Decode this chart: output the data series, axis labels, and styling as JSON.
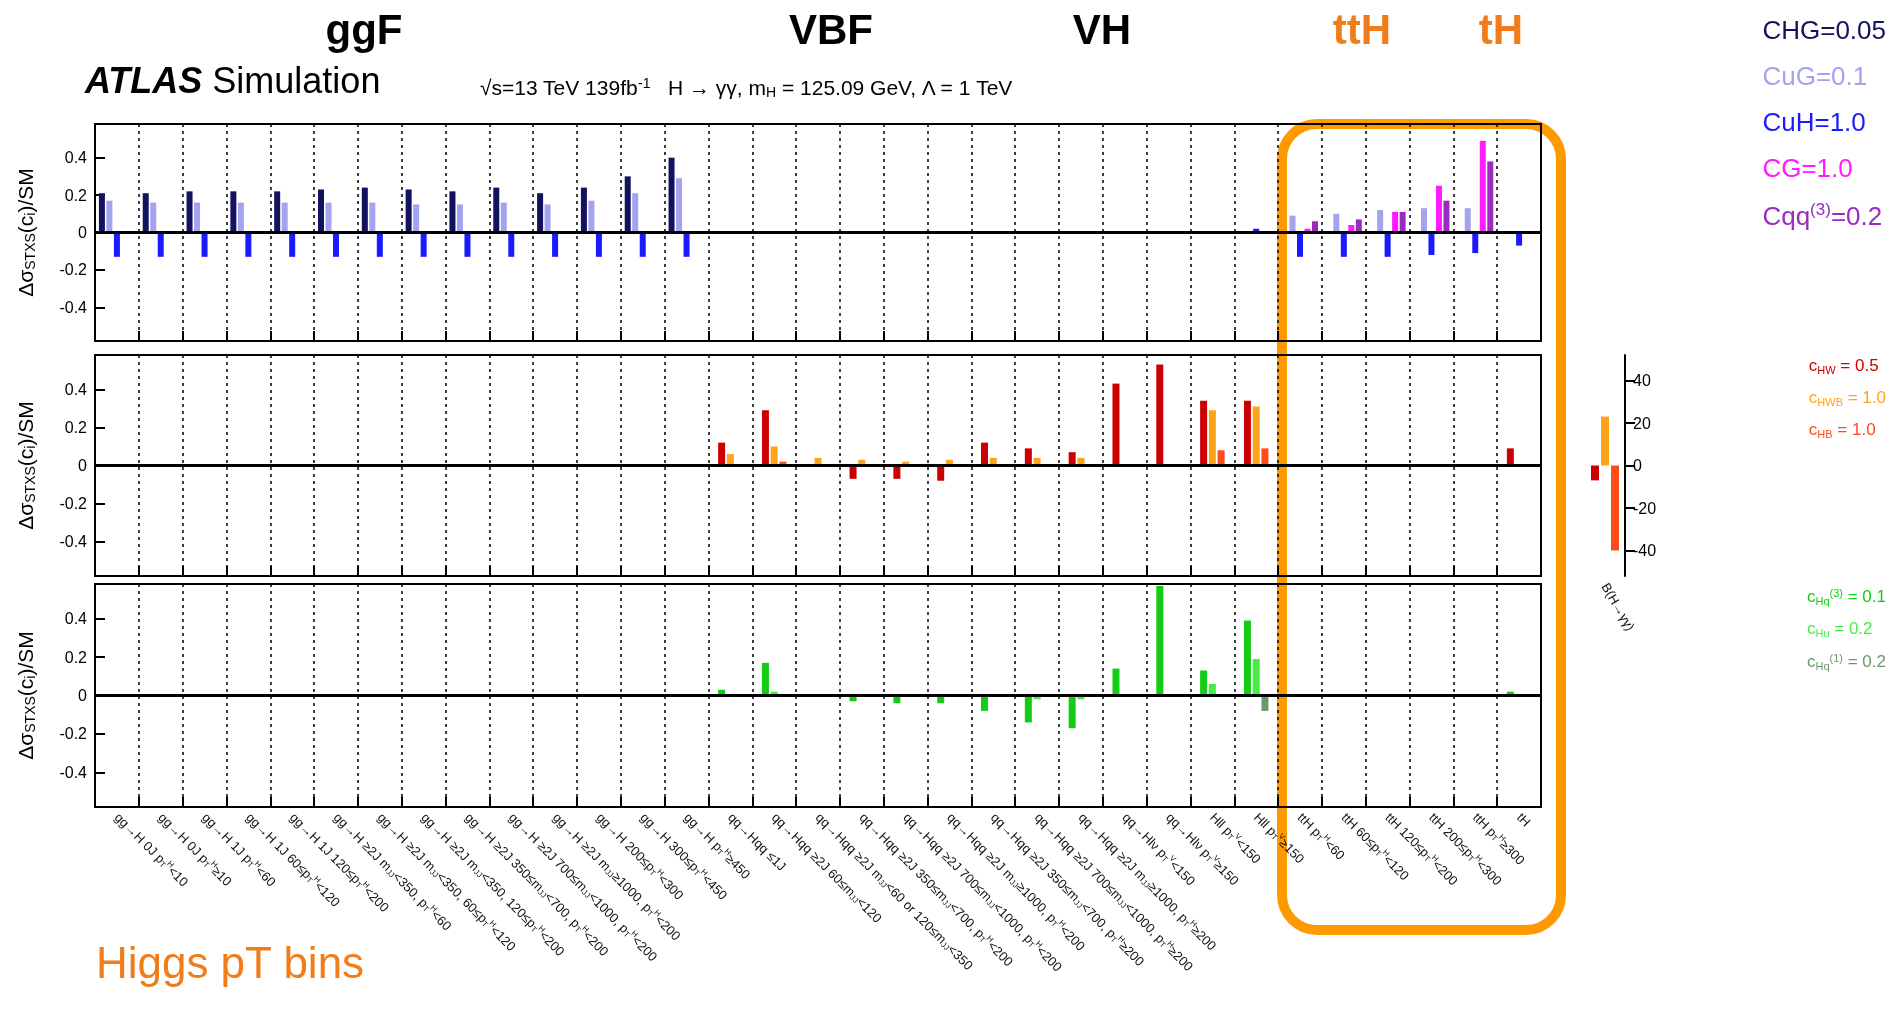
{
  "chart_data": [
    {
      "type": "bar",
      "title": "ATLAS Simulation",
      "subtitle": "√s=13 TeV 139fb$^{-1}$   H → γγ, m$_{H}$ = 125.09 GeV, Λ = 1 TeV",
      "ylabel": "Δσ$_{STXS}$(c$_{i}$)/SM",
      "categories": [
        null,
        null,
        null,
        null,
        null,
        null,
        null,
        null,
        null,
        null,
        null,
        null,
        null,
        null,
        null,
        null,
        null,
        null,
        null,
        null,
        null,
        null,
        null,
        null,
        null,
        null,
        null,
        null,
        null,
        null,
        null,
        null,
        null
      ],
      "series": [
        {
          "name": "CHG=0.05",
          "color": "#12125e",
          "values": [
            0.21,
            0.21,
            0.22,
            0.22,
            0.22,
            0.23,
            0.24,
            0.23,
            0.22,
            0.24,
            0.21,
            0.24,
            0.3,
            0.4,
            null,
            null,
            null,
            null,
            null,
            null,
            null,
            null,
            null,
            null,
            null,
            null,
            null,
            null,
            null,
            null,
            null,
            null,
            null
          ]
        },
        {
          "name": "CuG=0.1",
          "color": "#a3a3ee",
          "values": [
            0.17,
            0.16,
            0.16,
            0.16,
            0.16,
            0.16,
            0.16,
            0.15,
            0.15,
            0.16,
            0.15,
            0.17,
            0.21,
            0.29,
            null,
            null,
            null,
            null,
            null,
            null,
            null,
            null,
            null,
            null,
            null,
            null,
            null,
            0.09,
            0.1,
            0.12,
            0.13,
            0.13,
            null
          ]
        },
        {
          "name": "CuH=1.0",
          "color": "#1a1aff",
          "values": [
            -0.13,
            -0.13,
            -0.13,
            -0.13,
            -0.13,
            -0.13,
            -0.13,
            -0.13,
            -0.13,
            -0.13,
            -0.13,
            -0.13,
            -0.13,
            -0.13,
            null,
            null,
            null,
            null,
            null,
            null,
            null,
            null,
            null,
            null,
            null,
            null,
            0.02,
            -0.13,
            -0.13,
            -0.13,
            -0.12,
            -0.11,
            -0.07
          ]
        },
        {
          "name": "CG=1.0",
          "color": "#ff1aff",
          "values": [
            null,
            null,
            null,
            null,
            null,
            null,
            null,
            null,
            null,
            null,
            null,
            null,
            null,
            null,
            null,
            null,
            null,
            null,
            null,
            null,
            null,
            null,
            null,
            null,
            null,
            null,
            null,
            0.02,
            0.04,
            0.11,
            0.25,
            0.49,
            null
          ]
        },
        {
          "name": "Cqq$^{(3)}$=0.2",
          "color": "#9a2ac0",
          "values": [
            null,
            null,
            null,
            null,
            null,
            null,
            null,
            null,
            null,
            null,
            null,
            null,
            null,
            null,
            null,
            null,
            null,
            null,
            null,
            null,
            null,
            null,
            null,
            null,
            null,
            null,
            null,
            0.06,
            0.07,
            0.11,
            0.17,
            0.38,
            null
          ]
        }
      ],
      "ylim": [
        -0.58,
        0.58
      ],
      "yticks": [
        -0.4,
        -0.2,
        0,
        0.2,
        0.4
      ],
      "grid": "x",
      "legend": "right",
      "tick_labels": "y",
      "ref_lines": [
        {
          "axis": "y",
          "value": 0
        }
      ],
      "annotations": [
        "ggF",
        "VBF",
        "VH",
        "ttH",
        "tH"
      ]
    },
    {
      "type": "bar",
      "ylabel": "Δσ$_{STXS}$(c$_{i}$)/SM",
      "categories": [
        null,
        null,
        null,
        null,
        null,
        null,
        null,
        null,
        null,
        null,
        null,
        null,
        null,
        null,
        null,
        null,
        null,
        null,
        null,
        null,
        null,
        null,
        null,
        null,
        null,
        null,
        null,
        null,
        null,
        null,
        null,
        null,
        null
      ],
      "series": [
        {
          "name": "c$_{HW}$ = 0.5",
          "color": "#cc0000",
          "values": [
            null,
            null,
            null,
            null,
            null,
            null,
            null,
            null,
            null,
            null,
            null,
            null,
            null,
            null,
            0.12,
            0.29,
            null,
            -0.07,
            -0.07,
            -0.08,
            0.12,
            0.09,
            0.07,
            0.43,
            0.53,
            0.34,
            0.34,
            null,
            null,
            null,
            null,
            null,
            0.09
          ]
        },
        {
          "name": "c$_{HWB}$ = 1.0",
          "color": "#ffa31a",
          "values": [
            null,
            null,
            null,
            null,
            null,
            null,
            null,
            null,
            null,
            null,
            null,
            null,
            null,
            null,
            0.06,
            0.1,
            0.04,
            0.03,
            0.02,
            0.03,
            0.04,
            0.04,
            0.04,
            null,
            null,
            0.29,
            0.31,
            null,
            null,
            null,
            null,
            null,
            null
          ]
        },
        {
          "name": "c$_{HB}$ = 1.0",
          "color": "#ff4a1a",
          "values": [
            null,
            null,
            null,
            null,
            null,
            null,
            null,
            null,
            null,
            null,
            null,
            null,
            null,
            null,
            null,
            0.02,
            null,
            null,
            null,
            null,
            null,
            null,
            null,
            null,
            null,
            0.08,
            0.09,
            null,
            null,
            null,
            null,
            null,
            null
          ]
        }
      ],
      "ylim": [
        -0.58,
        0.58
      ],
      "yticks": [
        -0.4,
        -0.2,
        0,
        0.2,
        0.4
      ],
      "grid": "x",
      "legend": "right",
      "tick_labels": "y",
      "ref_lines": [
        {
          "axis": "y",
          "value": 0
        }
      ]
    },
    {
      "type": "bar",
      "ylabel": "Δσ$_{STXS}$(c$_{i}$)/SM",
      "categories": [
        "gg→H 0J p$_{T}$$^{H}$<10",
        "gg→H 0J p$_{T}$$^{H}$≥10",
        "gg→H 1J p$_{T}$$^{H}$<60",
        "gg→H 1J 60≤p$_{T}$$^{H}$<120",
        "gg→H 1J 120≤p$_{T}$$^{H}$<200",
        "gg→H ≥2J m$_{JJ}$<350, p$_{T}$$^{H}$<60",
        "gg→H ≥2J m$_{JJ}$<350, 60≤p$_{T}$$^{H}$<120",
        "gg→H ≥2J m$_{JJ}$<350, 120≤p$_{T}$$^{H}$<200",
        "gg→H ≥2J 350≤m$_{JJ}$<700, p$_{T}$$^{H}$<200",
        "gg→H ≥2J 700≤m$_{JJ}$<1000, p$_{T}$$^{H}$<200",
        "gg→H ≥2J m$_{JJ}$≥1000, p$_{T}$$^{H}$<200",
        "gg→H 200≤p$_{T}$$^{H}$<300",
        "gg→H 300≤p$_{T}$$^{H}$<450",
        "gg→H p$_{T}$$^{H}$≥450",
        "qq→Hqq ≤1J",
        "qq→Hqq ≥2J 60≤m$_{JJ}$<120",
        "qq→Hqq ≥2J m$_{JJ}$<60 or 120≤m$_{JJ}$<350",
        "qq→Hqq ≥2J 350≤m$_{JJ}$<700, p$_{T}$$^{H}$<200",
        "qq→Hqq ≥2J 700≤m$_{JJ}$<1000, p$_{T}$$^{H}$<200",
        "qq→Hqq ≥2J m$_{JJ}$≥1000, p$_{T}$$^{H}$<200",
        "qq→Hqq ≥2J 350≤m$_{JJ}$<700, p$_{T}$$^{H}$≥200",
        "qq→Hqq ≥2J 700≤m$_{JJ}$<1000, p$_{T}$$^{H}$≥200",
        "qq→Hqq ≥2J m$_{JJ}$≥1000, p$_{T}$$^{H}$≥200",
        "qq→Hlν p$_{T}$$^{V}$<150",
        "qq→Hlν p$_{T}$$^{V}$≥150",
        "Hll p$_{T}$$^{V}$<150",
        "Hll p$_{T}$$^{V}$≥150",
        "ttH p$_{T}$$^{H}$<60",
        "ttH 60≤p$_{T}$$^{H}$<120",
        "ttH 120≤p$_{T}$$^{H}$<200",
        "ttH 200≤p$_{T}$$^{H}$<300",
        "ttH p$_{T}$$^{H}$≥300",
        "tH"
      ],
      "series": [
        {
          "name": "c$_{Hq}$$^{(3)}$ = 0.1",
          "color": "#14cc14",
          "values": [
            null,
            null,
            null,
            null,
            null,
            null,
            null,
            null,
            null,
            null,
            null,
            null,
            null,
            null,
            0.03,
            0.17,
            null,
            -0.03,
            -0.04,
            -0.04,
            -0.08,
            -0.14,
            -0.17,
            0.14,
            0.57,
            0.13,
            0.39,
            null,
            null,
            null,
            null,
            null,
            0.02
          ]
        },
        {
          "name": "c$_{Hu}$ = 0.2",
          "color": "#44ee44",
          "values": [
            null,
            null,
            null,
            null,
            null,
            null,
            null,
            null,
            null,
            null,
            null,
            null,
            null,
            null,
            null,
            0.02,
            null,
            null,
            null,
            null,
            null,
            -0.02,
            -0.02,
            null,
            null,
            0.06,
            0.19,
            null,
            null,
            null,
            null,
            null,
            null
          ]
        },
        {
          "name": "c$_{Hq}$$^{(1)}$ = 0.2",
          "color": "#6a9a6a",
          "values": [
            null,
            null,
            null,
            null,
            null,
            null,
            null,
            null,
            null,
            null,
            null,
            null,
            null,
            null,
            null,
            null,
            null,
            null,
            null,
            null,
            null,
            null,
            null,
            null,
            null,
            null,
            -0.08,
            null,
            null,
            null,
            null,
            null,
            null
          ]
        }
      ],
      "ylim": [
        -0.58,
        0.58
      ],
      "yticks": [
        -0.4,
        -0.2,
        0,
        0.2,
        0.4
      ],
      "grid": "x",
      "legend": "right",
      "ref_lines": [
        {
          "axis": "y",
          "value": 0
        }
      ],
      "annotations": [
        "Higgs pT bins"
      ]
    },
    {
      "type": "bar",
      "categories": [
        "B(H→γγ)"
      ],
      "series": [
        {
          "color": "#cc0000",
          "axis": "y2",
          "values": [
            -7
          ]
        },
        {
          "color": "#ffa31a",
          "axis": "y2",
          "values": [
            23
          ]
        },
        {
          "color": "#ff4a1a",
          "axis": "y2",
          "values": [
            -40
          ]
        }
      ],
      "y2lim": [
        -52,
        52
      ],
      "y2ticks": [
        -40,
        -20,
        0,
        20,
        40
      ]
    }
  ]
}
